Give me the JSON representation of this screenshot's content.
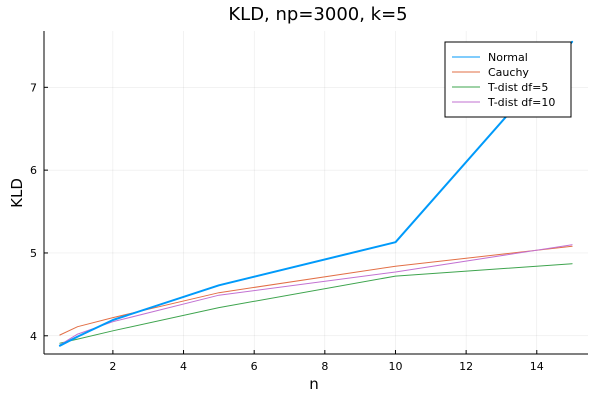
{
  "chart_data": {
    "type": "line",
    "title": "KLD, np=3000, k=5",
    "xlabel": "n",
    "ylabel": "KLD",
    "xlim": [
      0.05,
      15.45
    ],
    "ylim": [
      3.78,
      7.68
    ],
    "xticks": [
      2,
      4,
      6,
      8,
      10,
      12,
      14
    ],
    "yticks": [
      4,
      5,
      6,
      7
    ],
    "grid": true,
    "legend_position": "top-right",
    "series": [
      {
        "name": "Normal",
        "color": "#009AFA",
        "width": 2,
        "x": [
          0.5,
          1,
          2,
          5,
          10,
          15
        ],
        "y": [
          3.88,
          3.99,
          4.19,
          4.61,
          5.13,
          7.55
        ]
      },
      {
        "name": "Cauchy",
        "color": "#E26F46",
        "width": 1,
        "x": [
          0.5,
          1,
          2,
          5,
          10,
          15
        ],
        "y": [
          4.01,
          4.11,
          4.22,
          4.52,
          4.84,
          5.08
        ]
      },
      {
        "name": "T-dist df=5",
        "color": "#3EA44E",
        "width": 1,
        "x": [
          0.5,
          1,
          2,
          5,
          10,
          15
        ],
        "y": [
          3.91,
          3.96,
          4.06,
          4.34,
          4.72,
          4.87
        ]
      },
      {
        "name": "T-dist df=10",
        "color": "#C271D2",
        "width": 1,
        "x": [
          0.5,
          1,
          2,
          5,
          10,
          15
        ],
        "y": [
          3.89,
          4.02,
          4.17,
          4.49,
          4.77,
          5.1
        ]
      }
    ]
  }
}
